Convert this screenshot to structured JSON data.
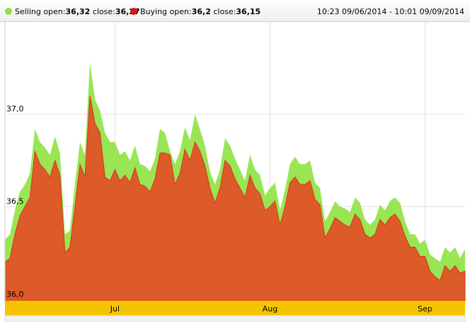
{
  "legend": {
    "selling": {
      "prefix": "Selling open:",
      "open": "36,32",
      "mid": " close:",
      "close": "36,27",
      "color": "#8ee045"
    },
    "buying": {
      "prefix": "Buying open:",
      "open": "36,2",
      "mid": " close:",
      "close": "36,15",
      "color": "#e01515"
    }
  },
  "date_range": "10:23 09/06/2014 - 10:01 09/09/2014",
  "chart_data": {
    "type": "area",
    "title": "",
    "xlabel": "",
    "ylabel": "",
    "ylim": [
      35.99,
      37.5
    ],
    "y_ticks": [
      {
        "value": 36.0,
        "label": "36,0"
      },
      {
        "value": 36.5,
        "label": "36,5"
      },
      {
        "value": 37.0,
        "label": "37,0"
      }
    ],
    "x_range": [
      "2014-06-09",
      "2014-09-09"
    ],
    "x_ticks": [
      {
        "date": "2014-07-01",
        "label": "Jul"
      },
      {
        "date": "2014-08-01",
        "label": "Aug"
      },
      {
        "date": "2014-09-01",
        "label": "Sep"
      }
    ],
    "grid": true,
    "legend_position": "top",
    "colors": {
      "selling_fill": "#99e554",
      "buying_fill": "#dd5a29",
      "axis_band": "#f5c400"
    },
    "series": [
      {
        "name": "Selling",
        "x": [
          "2014-06-09",
          "2014-06-10",
          "2014-06-11",
          "2014-06-12",
          "2014-06-13",
          "2014-06-14",
          "2014-06-15",
          "2014-06-16",
          "2014-06-17",
          "2014-06-18",
          "2014-06-19",
          "2014-06-20",
          "2014-06-21",
          "2014-06-22",
          "2014-06-23",
          "2014-06-24",
          "2014-06-25",
          "2014-06-26",
          "2014-06-27",
          "2014-06-28",
          "2014-06-29",
          "2014-06-30",
          "2014-07-01",
          "2014-07-02",
          "2014-07-03",
          "2014-07-04",
          "2014-07-05",
          "2014-07-06",
          "2014-07-07",
          "2014-07-08",
          "2014-07-09",
          "2014-07-10",
          "2014-07-11",
          "2014-07-12",
          "2014-07-13",
          "2014-07-14",
          "2014-07-15",
          "2014-07-16",
          "2014-07-17",
          "2014-07-18",
          "2014-07-19",
          "2014-07-20",
          "2014-07-21",
          "2014-07-22",
          "2014-07-23",
          "2014-07-24",
          "2014-07-25",
          "2014-07-26",
          "2014-07-27",
          "2014-07-28",
          "2014-07-29",
          "2014-07-30",
          "2014-07-31",
          "2014-08-01",
          "2014-08-02",
          "2014-08-03",
          "2014-08-04",
          "2014-08-05",
          "2014-08-06",
          "2014-08-07",
          "2014-08-08",
          "2014-08-09",
          "2014-08-10",
          "2014-08-11",
          "2014-08-12",
          "2014-08-13",
          "2014-08-14",
          "2014-08-15",
          "2014-08-16",
          "2014-08-17",
          "2014-08-18",
          "2014-08-19",
          "2014-08-20",
          "2014-08-21",
          "2014-08-22",
          "2014-08-23",
          "2014-08-24",
          "2014-08-25",
          "2014-08-26",
          "2014-08-27",
          "2014-08-28",
          "2014-08-29",
          "2014-08-30",
          "2014-08-31",
          "2014-09-01",
          "2014-09-02",
          "2014-09-03",
          "2014-09-04",
          "2014-09-05",
          "2014-09-06",
          "2014-09-07",
          "2014-09-08",
          "2014-09-09"
        ],
        "values": [
          36.32,
          36.35,
          36.48,
          36.58,
          36.62,
          36.68,
          36.92,
          36.85,
          36.82,
          36.78,
          36.88,
          36.79,
          36.35,
          36.37,
          36.62,
          36.85,
          36.78,
          37.28,
          37.08,
          37.02,
          36.9,
          36.85,
          36.85,
          36.78,
          36.8,
          36.75,
          36.83,
          36.73,
          36.72,
          36.69,
          36.76,
          36.92,
          36.9,
          36.8,
          36.73,
          36.8,
          36.93,
          36.86,
          37.0,
          36.92,
          36.83,
          36.69,
          36.62,
          36.7,
          36.87,
          36.83,
          36.76,
          36.7,
          36.64,
          36.78,
          36.7,
          36.67,
          36.56,
          36.6,
          36.63,
          36.48,
          36.59,
          36.73,
          36.77,
          36.73,
          36.73,
          36.75,
          36.63,
          36.6,
          36.42,
          36.47,
          36.53,
          36.5,
          36.49,
          36.47,
          36.55,
          36.52,
          36.43,
          36.4,
          36.43,
          36.51,
          36.48,
          36.53,
          36.55,
          36.52,
          36.42,
          36.35,
          36.35,
          36.3,
          36.32,
          36.24,
          36.22,
          36.2,
          36.28,
          36.25,
          36.28,
          36.22,
          36.27
        ]
      },
      {
        "name": "Buying",
        "x": [
          "2014-06-09",
          "2014-06-10",
          "2014-06-11",
          "2014-06-12",
          "2014-06-13",
          "2014-06-14",
          "2014-06-15",
          "2014-06-16",
          "2014-06-17",
          "2014-06-18",
          "2014-06-19",
          "2014-06-20",
          "2014-06-21",
          "2014-06-22",
          "2014-06-23",
          "2014-06-24",
          "2014-06-25",
          "2014-06-26",
          "2014-06-27",
          "2014-06-28",
          "2014-06-29",
          "2014-06-30",
          "2014-07-01",
          "2014-07-02",
          "2014-07-03",
          "2014-07-04",
          "2014-07-05",
          "2014-07-06",
          "2014-07-07",
          "2014-07-08",
          "2014-07-09",
          "2014-07-10",
          "2014-07-11",
          "2014-07-12",
          "2014-07-13",
          "2014-07-14",
          "2014-07-15",
          "2014-07-16",
          "2014-07-17",
          "2014-07-18",
          "2014-07-19",
          "2014-07-20",
          "2014-07-21",
          "2014-07-22",
          "2014-07-23",
          "2014-07-24",
          "2014-07-25",
          "2014-07-26",
          "2014-07-27",
          "2014-07-28",
          "2014-07-29",
          "2014-07-30",
          "2014-07-31",
          "2014-08-01",
          "2014-08-02",
          "2014-08-03",
          "2014-08-04",
          "2014-08-05",
          "2014-08-06",
          "2014-08-07",
          "2014-08-08",
          "2014-08-09",
          "2014-08-10",
          "2014-08-11",
          "2014-08-12",
          "2014-08-13",
          "2014-08-14",
          "2014-08-15",
          "2014-08-16",
          "2014-08-17",
          "2014-08-18",
          "2014-08-19",
          "2014-08-20",
          "2014-08-21",
          "2014-08-22",
          "2014-08-23",
          "2014-08-24",
          "2014-08-25",
          "2014-08-26",
          "2014-08-27",
          "2014-08-28",
          "2014-08-29",
          "2014-08-30",
          "2014-08-31",
          "2014-09-01",
          "2014-09-02",
          "2014-09-03",
          "2014-09-04",
          "2014-09-05",
          "2014-09-06",
          "2014-09-07",
          "2014-09-08",
          "2014-09-09"
        ],
        "values": [
          36.2,
          36.22,
          36.35,
          36.45,
          36.5,
          36.55,
          36.8,
          36.73,
          36.7,
          36.66,
          36.75,
          36.67,
          36.25,
          36.28,
          36.5,
          36.73,
          36.66,
          37.1,
          36.95,
          36.9,
          36.66,
          36.64,
          36.7,
          36.64,
          36.67,
          36.63,
          36.71,
          36.62,
          36.61,
          36.58,
          36.65,
          36.79,
          36.79,
          36.78,
          36.62,
          36.68,
          36.81,
          36.75,
          36.85,
          36.8,
          36.72,
          36.6,
          36.52,
          36.6,
          36.75,
          36.72,
          36.65,
          36.6,
          36.55,
          36.67,
          36.6,
          36.57,
          36.48,
          36.5,
          36.53,
          36.4,
          36.5,
          36.63,
          36.66,
          36.62,
          36.62,
          36.64,
          36.54,
          36.51,
          36.33,
          36.38,
          36.44,
          36.42,
          36.4,
          36.39,
          36.46,
          36.43,
          36.35,
          36.33,
          36.35,
          36.43,
          36.4,
          36.44,
          36.46,
          36.42,
          36.34,
          36.28,
          36.28,
          36.23,
          36.23,
          36.15,
          36.12,
          36.1,
          36.18,
          36.15,
          36.18,
          36.14,
          36.15
        ]
      }
    ]
  }
}
